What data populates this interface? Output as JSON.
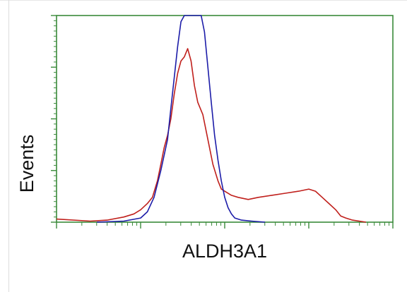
{
  "chart_data": {
    "type": "line",
    "title": "",
    "xlabel": "ALDH3A1",
    "ylabel": "Events",
    "x_scale": "log",
    "xlim": [
      0,
      100
    ],
    "ylim": [
      0,
      100
    ],
    "grid": false,
    "legend": "none",
    "axis_color": "#3a8a3a",
    "series": [
      {
        "color": "#c0201c",
        "points": [
          [
            0,
            1.5
          ],
          [
            10,
            0.5
          ],
          [
            15,
            1
          ],
          [
            20,
            2.5
          ],
          [
            23,
            4
          ],
          [
            25,
            6
          ],
          [
            27,
            9
          ],
          [
            28.5,
            12
          ],
          [
            30,
            20
          ],
          [
            31,
            28
          ],
          [
            32,
            36
          ],
          [
            33,
            42
          ],
          [
            34,
            50
          ],
          [
            35,
            62
          ],
          [
            36,
            72
          ],
          [
            37,
            78
          ],
          [
            38,
            80
          ],
          [
            39,
            84
          ],
          [
            40,
            78
          ],
          [
            41,
            66
          ],
          [
            42,
            58
          ],
          [
            43.5,
            52
          ],
          [
            45,
            40
          ],
          [
            46.5,
            28
          ],
          [
            48,
            20
          ],
          [
            49,
            16
          ],
          [
            50,
            15
          ],
          [
            52,
            13
          ],
          [
            54,
            12
          ],
          [
            57,
            11
          ],
          [
            60,
            12
          ],
          [
            64,
            13
          ],
          [
            68,
            14
          ],
          [
            72,
            15
          ],
          [
            75,
            16
          ],
          [
            77,
            15
          ],
          [
            79,
            12
          ],
          [
            81,
            9
          ],
          [
            83,
            6
          ],
          [
            84.5,
            3
          ],
          [
            86,
            2
          ],
          [
            88,
            1
          ],
          [
            90,
            0.5
          ],
          [
            92,
            0
          ]
        ]
      },
      {
        "color": "#1c1ca8",
        "points": [
          [
            12,
            0
          ],
          [
            20,
            0.5
          ],
          [
            25,
            2
          ],
          [
            27,
            5
          ],
          [
            29,
            12
          ],
          [
            31,
            25
          ],
          [
            33,
            40
          ],
          [
            34,
            55
          ],
          [
            35,
            70
          ],
          [
            36,
            85
          ],
          [
            37,
            97
          ],
          [
            38,
            100
          ],
          [
            39,
            100
          ],
          [
            40,
            100
          ],
          [
            41,
            100
          ],
          [
            42,
            100
          ],
          [
            43,
            100
          ],
          [
            44,
            92
          ],
          [
            45,
            75
          ],
          [
            46,
            58
          ],
          [
            47,
            42
          ],
          [
            48,
            30
          ],
          [
            49,
            20
          ],
          [
            50,
            12
          ],
          [
            51,
            7
          ],
          [
            52,
            4
          ],
          [
            53,
            2
          ],
          [
            55,
            1
          ],
          [
            58,
            0.5
          ],
          [
            62,
            0
          ]
        ]
      }
    ]
  }
}
